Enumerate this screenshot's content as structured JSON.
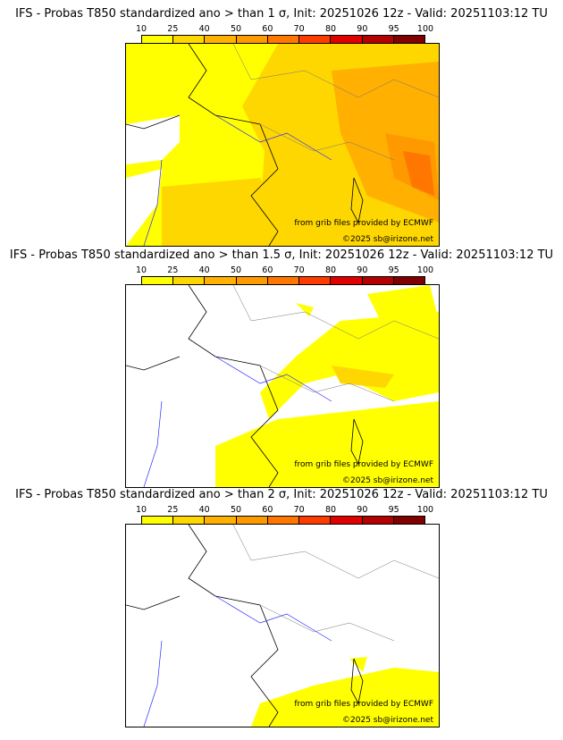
{
  "colorbar": {
    "labels": [
      "10",
      "25",
      "40",
      "50",
      "60",
      "70",
      "80",
      "90",
      "95",
      "100"
    ],
    "colors": [
      "#ffff00",
      "#ffd700",
      "#ffb000",
      "#ff9900",
      "#ff7700",
      "#ff3c00",
      "#e00000",
      "#b40000",
      "#800000"
    ]
  },
  "panels": [
    {
      "title": "IFS - Probas T850  standardized ano > than 1 σ, Init: 20251026 12z - Valid: 20251103:12 TU",
      "source_credit": "from grib files provided by ECMWF",
      "copyright": "©2025 sb@irizone.net"
    },
    {
      "title": "IFS - Probas T850  standardized ano > than 1.5 σ, Init: 20251026 12z - Valid: 20251103:12 TU",
      "source_credit": "from grib files provided by ECMWF",
      "copyright": "©2025 sb@irizone.net"
    },
    {
      "title": "IFS - Probas T850  standardized ano > than 2 σ, Init: 20251026 12z - Valid: 20251103:12 TU",
      "source_credit": "from grib files provided by ECMWF",
      "copyright": "©2025 sb@irizone.net"
    }
  ]
}
